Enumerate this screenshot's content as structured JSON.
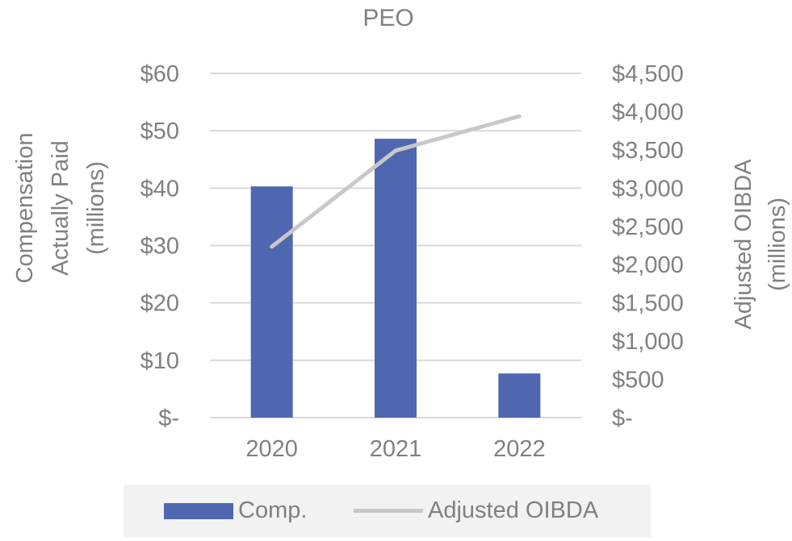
{
  "chart_data": {
    "type": "bar",
    "title": "PEO",
    "categories": [
      "2020",
      "2021",
      "2022"
    ],
    "series": [
      {
        "name": "Comp.",
        "type": "bar",
        "axis": "left",
        "color": "#4f67b1",
        "values": [
          40.3,
          48.6,
          7.7
        ]
      },
      {
        "name": "Adjusted OIBDA",
        "type": "line",
        "axis": "right",
        "color": "#c8c8c8",
        "values": [
          2235,
          3490,
          3940
        ]
      }
    ],
    "y_left": {
      "label_lines": [
        "Compensation",
        "Actually Paid",
        "(millions)"
      ],
      "ylim": [
        0,
        60
      ],
      "ticks": [
        {
          "value": 0,
          "label": "$-"
        },
        {
          "value": 10,
          "label": "$10"
        },
        {
          "value": 20,
          "label": "$20"
        },
        {
          "value": 30,
          "label": "$30"
        },
        {
          "value": 40,
          "label": "$40"
        },
        {
          "value": 50,
          "label": "$50"
        },
        {
          "value": 60,
          "label": "$60"
        }
      ]
    },
    "y_right": {
      "label_lines": [
        "Adjusted OIBDA",
        "(millions)"
      ],
      "ylim": [
        0,
        4500
      ],
      "ticks": [
        {
          "value": 0,
          "label": "$-"
        },
        {
          "value": 500,
          "label": "$500"
        },
        {
          "value": 1000,
          "label": "$1,000"
        },
        {
          "value": 1500,
          "label": "$1,500"
        },
        {
          "value": 2000,
          "label": "$2,000"
        },
        {
          "value": 2500,
          "label": "$2,500"
        },
        {
          "value": 3000,
          "label": "$3,000"
        },
        {
          "value": 3500,
          "label": "$3,500"
        },
        {
          "value": 4000,
          "label": "$4,000"
        },
        {
          "value": 4500,
          "label": "$4,500"
        }
      ]
    },
    "grid": true,
    "legend_position": "bottom"
  },
  "legend": {
    "comp_label": "Comp.",
    "oibda_label": "Adjusted OIBDA"
  },
  "colors": {
    "bar": "#4f67b1",
    "line": "#c8c8c8",
    "grid": "#d9d9d9",
    "text": "#808080"
  }
}
